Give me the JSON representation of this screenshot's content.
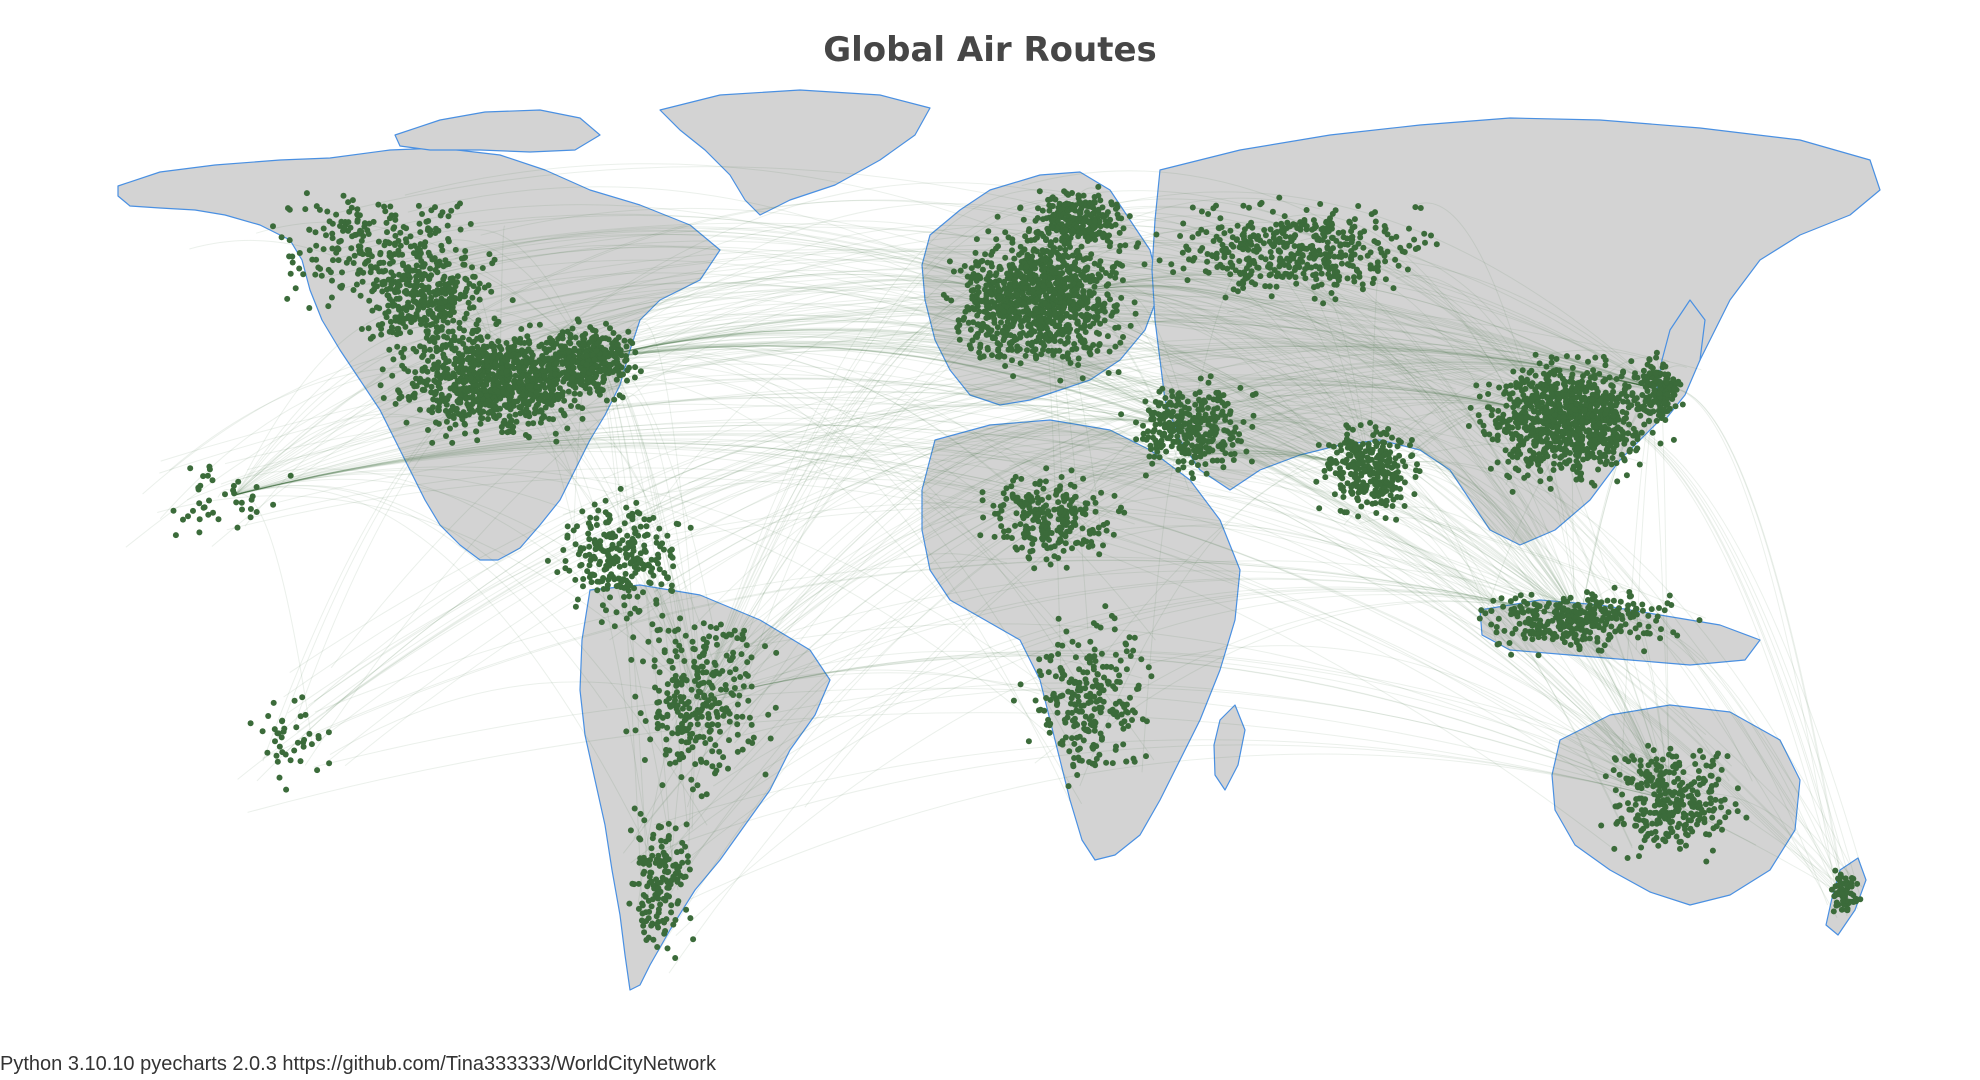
{
  "title": "Global Air Routes",
  "footer": "Python 3.10.10 pyecharts 2.0.3 https://github.com/Tina333333/WorldCityNetwork",
  "colors": {
    "land": "#d3d3d3",
    "border": "#4a90e2",
    "airport": "#3b6b3a",
    "route": "#3b6d3b",
    "background": "#ffffff"
  },
  "map": {
    "projection": "equirectangular",
    "layers": [
      "land",
      "routes",
      "airports"
    ],
    "regions": [
      {
        "name": "North America",
        "density": "very high"
      },
      {
        "name": "South America",
        "density": "high"
      },
      {
        "name": "Europe",
        "density": "very high"
      },
      {
        "name": "Africa",
        "density": "medium"
      },
      {
        "name": "Asia",
        "density": "very high"
      },
      {
        "name": "Oceania",
        "density": "medium"
      }
    ]
  }
}
